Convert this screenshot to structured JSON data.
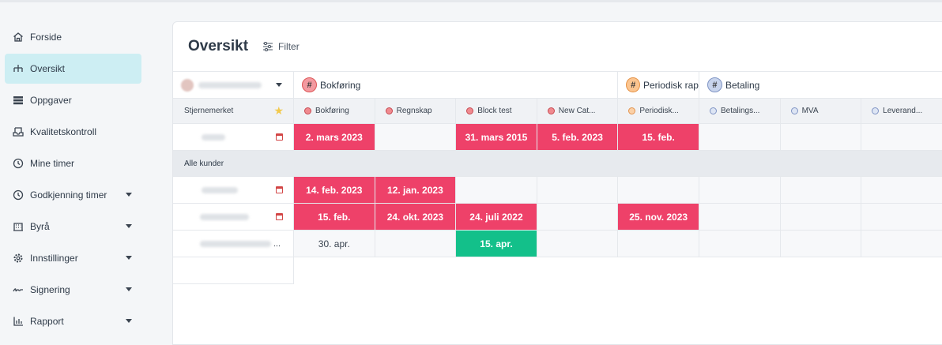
{
  "sidebar": {
    "items": [
      {
        "label": "Forside",
        "icon": "home-icon",
        "active": false,
        "caret": false
      },
      {
        "label": "Oversikt",
        "icon": "hierarchy-icon",
        "active": true,
        "caret": false
      },
      {
        "label": "Oppgaver",
        "icon": "list-icon",
        "active": false,
        "caret": false
      },
      {
        "label": "Kvalitetskontroll",
        "icon": "inbox-icon",
        "active": false,
        "caret": false
      },
      {
        "label": "Mine timer",
        "icon": "clock-icon",
        "active": false,
        "caret": false
      },
      {
        "label": "Godkjenning timer",
        "icon": "clock-check-icon",
        "active": false,
        "caret": true
      },
      {
        "label": "Byrå",
        "icon": "building-icon",
        "active": false,
        "caret": true
      },
      {
        "label": "Innstillinger",
        "icon": "gear-icon",
        "active": false,
        "caret": true
      },
      {
        "label": "Signering",
        "icon": "signature-icon",
        "active": false,
        "caret": true
      },
      {
        "label": "Rapport",
        "icon": "chart-icon",
        "active": false,
        "caret": true
      }
    ]
  },
  "header": {
    "title": "Oversikt",
    "filter_label": "Filter"
  },
  "groups": [
    {
      "label": "Bokføring",
      "color": "red"
    },
    {
      "label": "Periodisk rap",
      "color": "orange"
    },
    {
      "label": "Betaling",
      "color": "blue"
    }
  ],
  "subheader": {
    "first_label": "Stjernemerket",
    "columns": [
      {
        "label": "Bokføring",
        "color": "red"
      },
      {
        "label": "Regnskap",
        "color": "red"
      },
      {
        "label": "Block test",
        "color": "red"
      },
      {
        "label": "New Cat...",
        "color": "red"
      },
      {
        "label": "Periodisk...",
        "color": "orange"
      },
      {
        "label": "Betalings...",
        "color": "blue"
      },
      {
        "label": "MVA",
        "color": "blue"
      },
      {
        "label": "Leverand...",
        "color": "blue"
      }
    ]
  },
  "starred_rows": [
    {
      "cells": [
        {
          "text": "2. mars 2023",
          "style": "pink"
        },
        {
          "text": "",
          "style": ""
        },
        {
          "text": "31. mars 2015",
          "style": "pink"
        },
        {
          "text": "5. feb. 2023",
          "style": "pink"
        },
        {
          "text": "15. feb.",
          "style": "pink"
        },
        {
          "text": "",
          "style": ""
        },
        {
          "text": "",
          "style": ""
        },
        {
          "text": "",
          "style": ""
        }
      ]
    }
  ],
  "section_label": "Alle kunder",
  "customer_rows": [
    {
      "cells": [
        {
          "text": "14. feb. 2023",
          "style": "pink"
        },
        {
          "text": "12. jan. 2023",
          "style": "pink"
        },
        {
          "text": "",
          "style": ""
        },
        {
          "text": "",
          "style": ""
        },
        {
          "text": "",
          "style": ""
        },
        {
          "text": "",
          "style": ""
        },
        {
          "text": "",
          "style": ""
        },
        {
          "text": "",
          "style": ""
        }
      ]
    },
    {
      "cells": [
        {
          "text": "15. feb.",
          "style": "pink"
        },
        {
          "text": "24. okt. 2023",
          "style": "pink"
        },
        {
          "text": "24. juli 2022",
          "style": "pink"
        },
        {
          "text": "",
          "style": ""
        },
        {
          "text": "25. nov. 2023",
          "style": "pink"
        },
        {
          "text": "",
          "style": ""
        },
        {
          "text": "",
          "style": ""
        },
        {
          "text": "",
          "style": ""
        }
      ]
    },
    {
      "cells": [
        {
          "text": "30. apr.",
          "style": ""
        },
        {
          "text": "",
          "style": ""
        },
        {
          "text": "15. apr.",
          "style": "green"
        },
        {
          "text": "",
          "style": ""
        },
        {
          "text": "",
          "style": ""
        },
        {
          "text": "",
          "style": ""
        },
        {
          "text": "",
          "style": ""
        },
        {
          "text": "",
          "style": ""
        }
      ]
    }
  ],
  "ellipsis": "..."
}
